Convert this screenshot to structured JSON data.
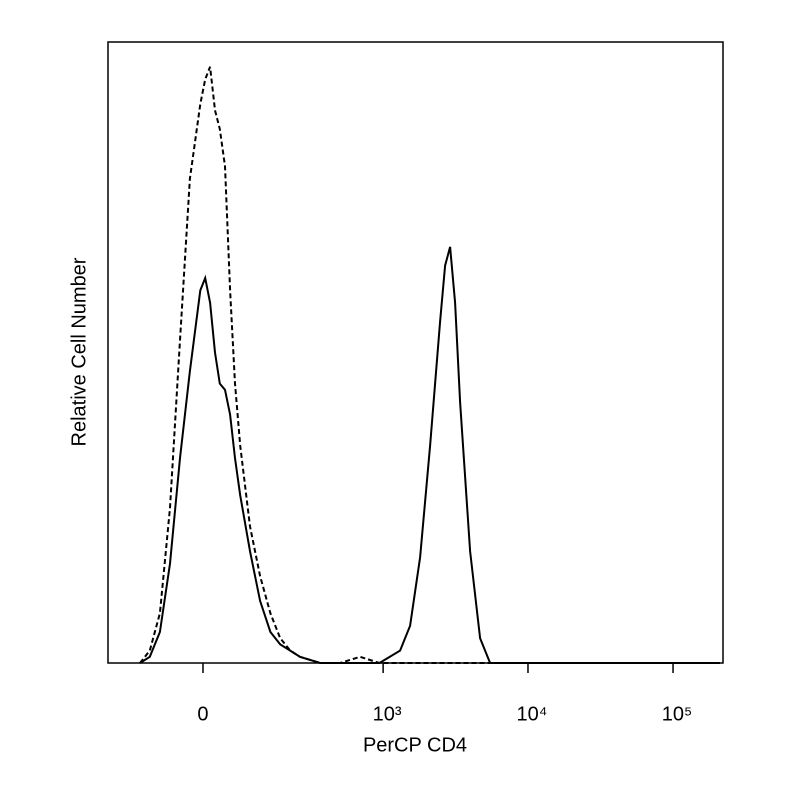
{
  "chart_data": {
    "type": "line",
    "xlabel": "PerCP CD4",
    "ylabel": "Relative Cell Number",
    "xscale": "biexponential",
    "x": [
      -135,
      -109,
      -85,
      -63,
      -43,
      -24,
      -5,
      4,
      13,
      22,
      31,
      41,
      51,
      61,
      72,
      94,
      119,
      148,
      179,
      215,
      256,
      360,
      500,
      690,
      943,
      1311,
      1537,
      1802,
      2113,
      2477,
      2682,
      2904,
      3144,
      3404,
      3990,
      4677,
      5482,
      6426,
      14210,
      31330,
      69700,
      153800,
      210000
    ],
    "series": [
      {
        "color": "#000000",
        "linestyle": "dashed",
        "values": [
          0,
          2,
          8,
          25,
          52,
          78,
          90,
          94,
          96,
          89,
          86,
          80,
          60,
          45,
          35,
          22,
          14,
          8,
          4,
          2,
          1,
          0,
          0,
          1,
          0,
          0,
          0,
          0,
          0,
          0,
          0,
          0,
          0,
          0,
          0,
          0,
          0,
          0,
          0,
          0,
          0,
          0,
          0
        ]
      },
      {
        "color": "#000000",
        "linestyle": "solid",
        "values": [
          0,
          1,
          5,
          16,
          33,
          47,
          60,
          62,
          58,
          50,
          45,
          44,
          40,
          33,
          27,
          18,
          10,
          5,
          3,
          2,
          1,
          0,
          0,
          0,
          0,
          2,
          6,
          17,
          35,
          55,
          64,
          67,
          58,
          42,
          18,
          4,
          0,
          0,
          0,
          0,
          0,
          0,
          0
        ]
      }
    ],
    "xlim": [
      -247,
      221000
    ],
    "xticks": [
      0,
      {
        "value": 1000,
        "label": "10³"
      },
      {
        "value": 10000,
        "label": "10⁴"
      },
      {
        "value": 100000,
        "label": "10⁵"
      }
    ],
    "ylim": [
      0,
      100
    ]
  }
}
